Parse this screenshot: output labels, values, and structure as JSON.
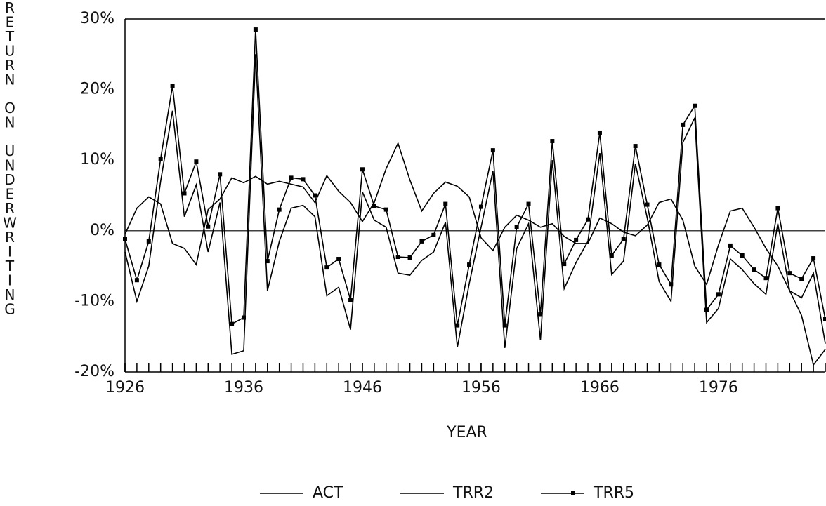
{
  "chart_data": {
    "type": "line",
    "y_label": "RETURN ON UNDERWRITING",
    "x_label": "YEAR",
    "x": [
      1926,
      1927,
      1928,
      1929,
      1930,
      1931,
      1932,
      1933,
      1934,
      1935,
      1936,
      1937,
      1938,
      1939,
      1940,
      1941,
      1942,
      1943,
      1944,
      1945,
      1946,
      1947,
      1948,
      1949,
      1950,
      1951,
      1952,
      1953,
      1954,
      1955,
      1956,
      1957,
      1958,
      1959,
      1960,
      1961,
      1962,
      1963,
      1964,
      1965,
      1966,
      1967,
      1968,
      1969,
      1970,
      1971,
      1972,
      1973,
      1974,
      1975,
      1976,
      1977,
      1978,
      1979,
      1980,
      1981,
      1982,
      1983,
      1984,
      1985
    ],
    "series": [
      {
        "name": "ACT",
        "color": "#000000",
        "marker": false,
        "values": [
          -0.5,
          3.2,
          4.8,
          3.8,
          -1.8,
          -2.5,
          -4.8,
          3,
          4.5,
          7.5,
          6.8,
          7.7,
          6.6,
          7,
          6.6,
          6.2,
          4,
          7.8,
          5.6,
          4,
          1.3,
          4,
          8.8,
          12.4,
          7.2,
          2.8,
          5.3,
          6.9,
          6.3,
          4.8,
          -1,
          -2.8,
          0.5,
          2.2,
          1.5,
          0.5,
          1,
          -0.8,
          -1.8,
          -1.8,
          1.8,
          1,
          -0.2,
          -0.7,
          0.8,
          4,
          4.5,
          1.5,
          -5,
          -7.6,
          -2,
          2.8,
          3.2,
          0.5,
          -2.5,
          -5,
          -8.5,
          -12,
          -19,
          -16.8
        ]
      },
      {
        "name": "TRR2",
        "color": "#000000",
        "marker": false,
        "values": [
          -3,
          -10,
          -5,
          7,
          17,
          2,
          6.5,
          -3,
          4,
          -17.5,
          -17,
          25,
          -8.5,
          -1.5,
          3.2,
          3.6,
          2,
          -9.2,
          -8,
          -14,
          5.5,
          1.5,
          0.5,
          -6,
          -6.3,
          -4.2,
          -3,
          1.2,
          -16.5,
          -7.5,
          0.5,
          8.5,
          -16.6,
          -2.5,
          1,
          -15.5,
          10,
          -8.2,
          -4.5,
          -1.5,
          11,
          -6.2,
          -4.3,
          9.5,
          1.8,
          -7.2,
          -10,
          12.5,
          16,
          -13,
          -11,
          -4,
          -5.5,
          -7.5,
          -9,
          1,
          -8.5,
          -9.5,
          -6,
          -16
        ]
      },
      {
        "name": "TRR5",
        "color": "#000000",
        "marker": true,
        "values": [
          -1.2,
          -7,
          -1.5,
          10.2,
          20.5,
          5.3,
          9.8,
          0.6,
          8,
          -13.2,
          -12.3,
          28.5,
          -4.3,
          3,
          7.5,
          7.3,
          5,
          -5.2,
          -4,
          -9.8,
          8.7,
          3.5,
          3,
          -3.7,
          -3.8,
          -1.5,
          -0.6,
          3.8,
          -13.4,
          -4.8,
          3.4,
          11.4,
          -13.4,
          0.5,
          3.8,
          -11.8,
          12.7,
          -4.7,
          -1.3,
          1.6,
          13.9,
          -3.5,
          -1.2,
          12,
          3.7,
          -4.8,
          -7.6,
          15,
          17.7,
          -11.2,
          -9,
          -2.1,
          -3.5,
          -5.5,
          -6.7,
          3.2,
          -6,
          -6.8,
          -3.9,
          -12.5
        ]
      }
    ],
    "xlim": [
      1926,
      1985
    ],
    "xticks": [
      1926,
      1936,
      1946,
      1956,
      1966,
      1976
    ],
    "ylim": [
      -20,
      30
    ],
    "yticks": [
      {
        "value": -20,
        "label": "-20%"
      },
      {
        "value": -10,
        "label": "-10%"
      },
      {
        "value": 0,
        "label": "0%"
      },
      {
        "value": 10,
        "label": "10%"
      },
      {
        "value": 20,
        "label": "20%"
      },
      {
        "value": 30,
        "label": "30%"
      }
    ],
    "legend": "bottom"
  }
}
